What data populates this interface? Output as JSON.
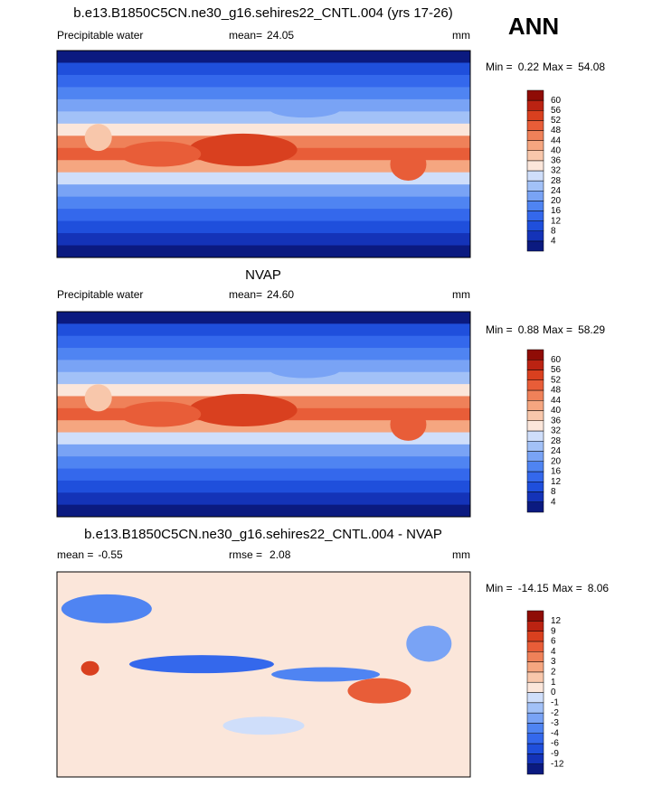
{
  "figure_title": "ANN",
  "palette": [
    "#0b1a80",
    "#1433b8",
    "#1f4fdc",
    "#3468ec",
    "#4f84f2",
    "#79a3f5",
    "#a2c1f7",
    "#cfdefa",
    "#fbe6da",
    "#f8c7ab",
    "#f5a680",
    "#ef8159",
    "#e85d38",
    "#d9401f",
    "#bb2312",
    "#8f0c06"
  ],
  "panels": [
    {
      "title": "b.e13.B1850C5CN.ne30_g16.sehires22_CNTL.004 (yrs 17-26)",
      "variable": "Precipitable water",
      "mean_label": "mean=",
      "mean": 24.05,
      "units": "mm",
      "min_label": "Min =",
      "min": 0.22,
      "max_label": "Max =",
      "max": 54.08,
      "levels": [
        4,
        8,
        12,
        16,
        20,
        24,
        28,
        32,
        36,
        40,
        44,
        48,
        52,
        56,
        60
      ]
    },
    {
      "title": "NVAP",
      "variable": "Precipitable water",
      "mean_label": "mean=",
      "mean": "24.60",
      "units": "mm",
      "min_label": "Min =",
      "min": 0.88,
      "max_label": "Max =",
      "max": 58.29,
      "levels": [
        4,
        8,
        12,
        16,
        20,
        24,
        28,
        32,
        36,
        40,
        44,
        48,
        52,
        56,
        60
      ]
    },
    {
      "title": "b.e13.B1850C5CN.ne30_g16.sehires22_CNTL.004 - NVAP",
      "mean_label": "mean =",
      "mean": -0.55,
      "rmse_label": "rmse =",
      "rmse": 2.08,
      "units": "mm",
      "min_label": "Min =",
      "min": -14.15,
      "max_label": "Max =",
      "max": 8.06,
      "levels": [
        -12,
        -9,
        -6,
        -4,
        -3,
        -2,
        -1,
        0,
        1,
        2,
        3,
        4,
        6,
        9,
        12
      ]
    }
  ]
}
